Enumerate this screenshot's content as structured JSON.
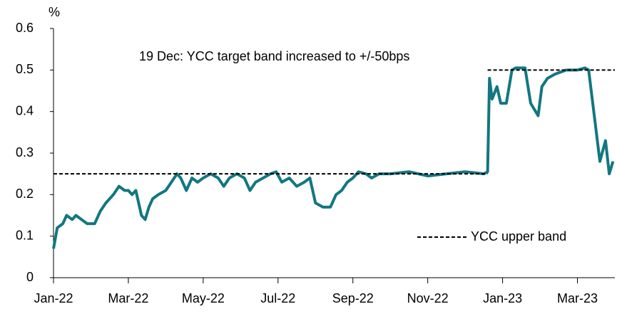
{
  "chart_data": {
    "type": "line",
    "y_label": "%",
    "annotations": [
      "19 Dec: YCC target band increased to +/-50bps"
    ],
    "xlim": [
      0,
      15
    ],
    "xticks": [
      {
        "value": 0,
        "label": "Jan-22"
      },
      {
        "value": 2,
        "label": "Mar-22"
      },
      {
        "value": 4,
        "label": "May-22"
      },
      {
        "value": 6,
        "label": "Jul-22"
      },
      {
        "value": 8,
        "label": "Sep-22"
      },
      {
        "value": 10,
        "label": "Nov-22"
      },
      {
        "value": 12,
        "label": "Jan-23"
      },
      {
        "value": 14,
        "label": "Mar-23"
      }
    ],
    "ylim": [
      0,
      0.6
    ],
    "yticks": [
      0,
      0.1,
      0.2,
      0.3,
      0.4,
      0.5,
      0.6
    ],
    "legend": "bottom-right",
    "series": [
      {
        "color": "#127780",
        "x": [
          0,
          0.1,
          0.25,
          0.35,
          0.5,
          0.6,
          0.75,
          0.9,
          1.1,
          1.25,
          1.4,
          1.5,
          1.6,
          1.75,
          1.9,
          2.0,
          2.1,
          2.2,
          2.35,
          2.45,
          2.55,
          2.65,
          2.8,
          3.0,
          3.15,
          3.3,
          3.4,
          3.55,
          3.7,
          3.85,
          4.0,
          4.2,
          4.4,
          4.55,
          4.7,
          4.9,
          5.1,
          5.25,
          5.4,
          5.6,
          5.8,
          5.95,
          6.1,
          6.3,
          6.5,
          6.7,
          6.85,
          7.0,
          7.2,
          7.4,
          7.55,
          7.7,
          7.85,
          8.0,
          8.15,
          8.35,
          8.5,
          8.7,
          9.0,
          9.5,
          10.0,
          10.5,
          11.0,
          11.5,
          11.6,
          11.65,
          11.72,
          11.85,
          11.95,
          12.1,
          12.25,
          12.35,
          12.6,
          12.75,
          12.95,
          13.05,
          13.2,
          13.4,
          13.7,
          14.0,
          14.2,
          14.3,
          14.45,
          14.6,
          14.75,
          14.85,
          14.95
        ],
        "values": [
          0.07,
          0.12,
          0.13,
          0.15,
          0.14,
          0.15,
          0.14,
          0.13,
          0.13,
          0.16,
          0.18,
          0.19,
          0.2,
          0.22,
          0.21,
          0.21,
          0.2,
          0.21,
          0.15,
          0.14,
          0.17,
          0.19,
          0.2,
          0.21,
          0.23,
          0.25,
          0.24,
          0.21,
          0.24,
          0.23,
          0.24,
          0.25,
          0.24,
          0.22,
          0.24,
          0.25,
          0.24,
          0.21,
          0.23,
          0.24,
          0.25,
          0.255,
          0.23,
          0.24,
          0.22,
          0.23,
          0.24,
          0.18,
          0.17,
          0.17,
          0.2,
          0.21,
          0.23,
          0.24,
          0.255,
          0.25,
          0.24,
          0.25,
          0.25,
          0.255,
          0.245,
          0.25,
          0.255,
          0.25,
          0.255,
          0.48,
          0.43,
          0.46,
          0.42,
          0.42,
          0.5,
          0.505,
          0.505,
          0.42,
          0.39,
          0.46,
          0.48,
          0.49,
          0.5,
          0.5,
          0.505,
          0.5,
          0.39,
          0.28,
          0.33,
          0.25,
          0.28
        ]
      },
      {
        "name": "YCC upper band",
        "color": "#000000",
        "dashed": true,
        "x": [
          0,
          11.6,
          11.6,
          11.6,
          15
        ],
        "values": [
          0.25,
          0.25,
          null,
          0.5,
          0.5
        ]
      }
    ]
  }
}
